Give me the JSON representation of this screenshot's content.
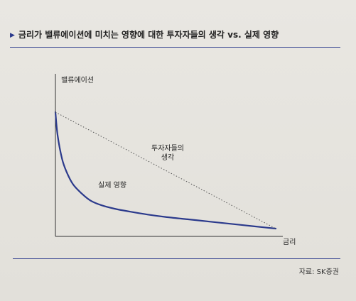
{
  "figure": {
    "title_marker": "▶",
    "title": "금리가 밸류에이션에 미치는 영향에 대한 투자자들의 생각 vs. 실제 영향",
    "source": "자료: SK증권"
  },
  "chart_data": {
    "type": "line",
    "title": "금리가 밸류에이션에 미치는 영향에 대한 투자자들의 생각 vs. 실제 영향",
    "xlabel": "금리",
    "ylabel": "밸류에이션",
    "grid": false,
    "legend": "none",
    "axis_ticks": false,
    "series": [
      {
        "name": "실제 영향",
        "style": "solid",
        "color": "#2b3a8c",
        "x": [
          0,
          0.01,
          0.03,
          0.05,
          0.08,
          0.12,
          0.16,
          0.21,
          0.27,
          0.34,
          0.42,
          0.5,
          0.6,
          0.7,
          0.8,
          0.9,
          1.0
        ],
        "y": [
          1.0,
          0.8,
          0.6,
          0.49,
          0.38,
          0.3,
          0.24,
          0.2,
          0.17,
          0.145,
          0.12,
          0.1,
          0.08,
          0.06,
          0.04,
          0.02,
          0.0
        ]
      },
      {
        "name": "투자자들의 생각",
        "style": "dotted",
        "color": "#555555",
        "x": [
          0,
          1
        ],
        "y": [
          1,
          0
        ]
      }
    ],
    "annotations": [
      {
        "text_lines": [
          "투자자들의",
          "생각"
        ],
        "series": "투자자들의 생각"
      },
      {
        "text_lines": [
          "실제 영향"
        ],
        "series": "실제 영향"
      }
    ]
  }
}
